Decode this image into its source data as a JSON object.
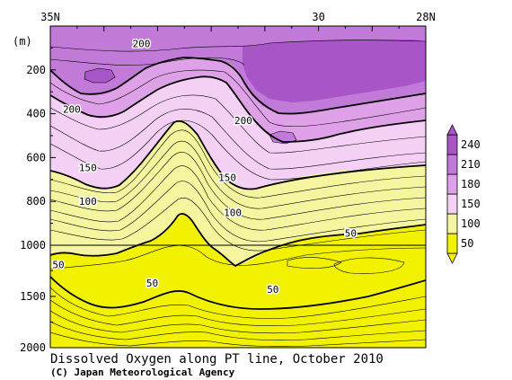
{
  "chart_data": {
    "type": "heatmap",
    "title": "Dissolved Oxygen along PT line, October 2010",
    "credit": "(C) Japan Meteorological Agency",
    "xlabels": [
      {
        "label": "35N",
        "lat": 35
      },
      {
        "label": "30",
        "lat": 30
      },
      {
        "label": "28N",
        "lat": 28
      }
    ],
    "x_range": [
      35,
      28
    ],
    "y_unit_label": "(m)",
    "y_ticks_upper": [
      200,
      400,
      600,
      800,
      1000
    ],
    "y_ticks_lower": [
      1500,
      2000
    ],
    "y_range": [
      0,
      2000
    ],
    "y_axis_break_depth": 1000,
    "colorbar": {
      "levels": [
        50,
        100,
        150,
        180,
        210,
        240
      ],
      "labels": [
        "50",
        "100",
        "150",
        "180",
        "210",
        "240"
      ],
      "colors": [
        "#f2f200",
        "#f5f5a0",
        "#f4d0f4",
        "#dea0e6",
        "#c27ad8",
        "#a855c8"
      ]
    },
    "contour_labels": [
      {
        "text": "200",
        "lat": 33.3,
        "depth": 80
      },
      {
        "text": "200",
        "lat": 34.6,
        "depth": 380
      },
      {
        "text": "200",
        "lat": 31.4,
        "depth": 430
      },
      {
        "text": "150",
        "lat": 34.3,
        "depth": 645
      },
      {
        "text": "150",
        "lat": 31.7,
        "depth": 690
      },
      {
        "text": "100",
        "lat": 34.3,
        "depth": 800
      },
      {
        "text": "100",
        "lat": 31.6,
        "depth": 850
      },
      {
        "text": "50",
        "lat": 29.4,
        "depth": 945
      },
      {
        "text": "50",
        "lat": 34.85,
        "depth": 1190
      },
      {
        "text": "50",
        "lat": 33.1,
        "depth": 1370
      },
      {
        "text": "50",
        "lat": 30.85,
        "depth": 1430
      }
    ],
    "contour_interval": 10,
    "bold_contours": [
      50,
      100,
      150,
      200
    ]
  }
}
